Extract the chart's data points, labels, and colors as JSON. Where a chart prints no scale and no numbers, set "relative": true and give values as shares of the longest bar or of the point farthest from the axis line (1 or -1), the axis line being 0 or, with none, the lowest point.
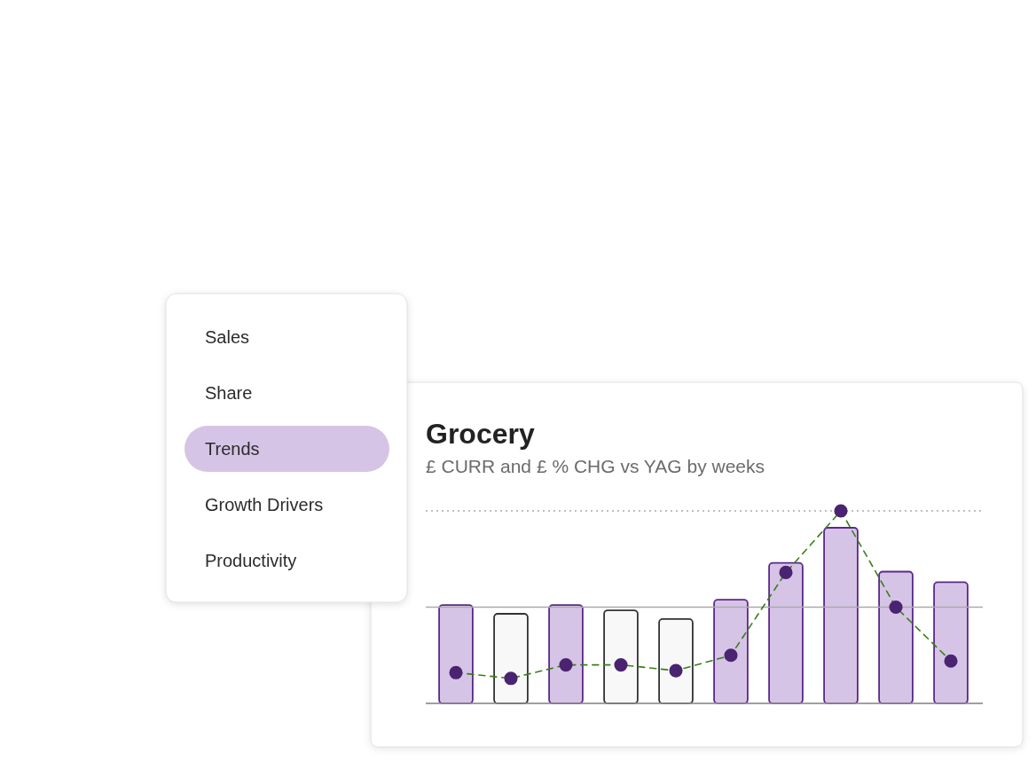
{
  "chart_data": [
    {
      "type": "other",
      "categories": [
        "Sales",
        "Share",
        "Trends",
        "Growth Drivers",
        "Productivity"
      ],
      "colors": [
        "#ffffff",
        "#ffffff",
        "#d6c4e6",
        "#ffffff",
        "#ffffff"
      ]
    },
    {
      "type": "bar",
      "title": "Grocery",
      "subtitle": "£ CURR and £ % CHG vs YAG by weeks",
      "relative": true,
      "categories": [
        null,
        null,
        null,
        null,
        null,
        null,
        null,
        null,
        null,
        null
      ],
      "colors": [
        "#d6c4e6",
        "#f8f8f8",
        "#d6c4e6",
        "#f8f8f8",
        "#f8f8f8",
        "#d6c4e6",
        "#d6c4e6",
        "#d6c4e6",
        "#d6c4e6",
        "#d6c4e6"
      ],
      "values": [
        0.56,
        0.51,
        0.56,
        0.53,
        0.48,
        0.59,
        0.8,
        1,
        0.75,
        0.69
      ]
    },
    {
      "type": "line",
      "relative": true,
      "categories": [
        null,
        null,
        null,
        null,
        null,
        null,
        null,
        null,
        null,
        null
      ],
      "series": [
        {
          "color": "#3a7d1a",
          "colors": [
            "#4a2470",
            "#4a2470",
            "#4a2470",
            "#4a2470",
            "#4a2470",
            "#4a2470",
            "#4a2470",
            "#4a2470",
            "#4a2470",
            "#4a2470"
          ],
          "values": [
            0.16,
            0.13,
            0.2,
            0.2,
            0.17,
            0.25,
            0.68,
            1,
            0.5,
            0.22
          ]
        }
      ],
      "line_style": "dashed",
      "marker": "circle",
      "ref_lines": [
        {
          "axis": "y",
          "value": 1,
          "color": "#aaaaaa",
          "line_style": "dotted"
        },
        {
          "axis": "y",
          "value": 0.5,
          "color": "#aaaaaa",
          "line_style": "solid"
        }
      ]
    }
  ]
}
